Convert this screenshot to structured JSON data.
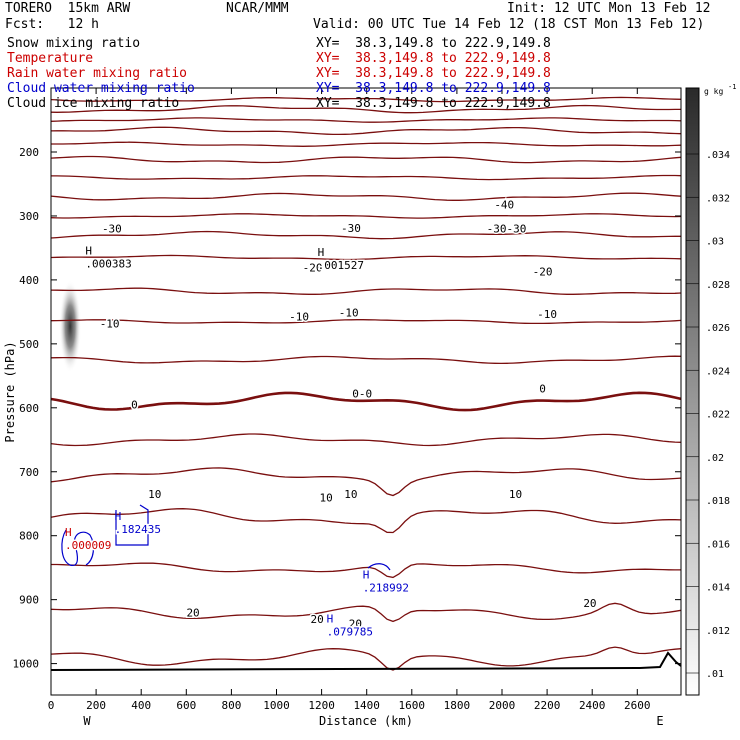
{
  "header": {
    "model": "TORERO  15km ARW",
    "org": "NCAR/MMM",
    "init": "Init: 12 UTC Mon 13 Feb 12",
    "fcst": "Fcst:   12 h",
    "valid": "Valid: 00 UTC Tue 14 Feb 12 (18 CST Mon 13 Feb 12)"
  },
  "fields": [
    {
      "name": "Snow mixing ratio",
      "xy": "XY=  38.3,149.8 to 222.9,149.8",
      "color": "#000000"
    },
    {
      "name": "Temperature",
      "xy": "XY=  38.3,149.8 to 222.9,149.8",
      "color": "#cc0000"
    },
    {
      "name": "Rain water mixing ratio",
      "xy": "XY=  38.3,149.8 to 222.9,149.8",
      "color": "#cc0000"
    },
    {
      "name": "Cloud water mixing ratio",
      "xy": "XY=  38.3,149.8 to 222.9,149.8",
      "color": "#0000cc"
    },
    {
      "name": "Cloud ice mixing ratio",
      "xy": "XY=  38.3,149.8 to 222.9,149.8",
      "color": "#000000"
    }
  ],
  "chart_data": {
    "type": "contour-cross-section",
    "xlabel": "Distance (km)",
    "ylabel": "Pressure (hPa)",
    "xlim": [
      0,
      2800
    ],
    "ylim": [
      1050,
      100
    ],
    "x_ticks": [
      "0",
      "200",
      "400",
      "600",
      "800",
      "1000",
      "1200",
      "1400",
      "1600",
      "1800",
      "2000",
      "2200",
      "2400",
      "2600"
    ],
    "x_tick_values": [
      0,
      200,
      400,
      600,
      800,
      1000,
      1200,
      1400,
      1600,
      1800,
      2000,
      2200,
      2400,
      2600
    ],
    "y_ticks": [
      "200",
      "300",
      "400",
      "500",
      "600",
      "700",
      "800",
      "900",
      "1000"
    ],
    "y_tick_values": [
      200,
      300,
      400,
      500,
      600,
      700,
      800,
      900,
      1000
    ],
    "west_label": "W",
    "east_label": "E",
    "colorbar": {
      "unit": "g kg",
      "unit_sup": "-1",
      "labels": [
        ".01",
        ".012",
        ".014",
        ".016",
        ".018",
        ".02",
        ".022",
        ".024",
        ".026",
        ".028",
        ".03",
        ".032",
        ".034"
      ]
    },
    "temperature_contours": [
      {
        "p": 118,
        "label": ""
      },
      {
        "p": 133,
        "label": ""
      },
      {
        "p": 150,
        "label": ""
      },
      {
        "p": 167,
        "label": ""
      },
      {
        "p": 188,
        "label": ""
      },
      {
        "p": 212,
        "label": ""
      },
      {
        "p": 240,
        "label": ""
      },
      {
        "p": 270,
        "label": ""
      },
      {
        "p": 300,
        "label": ""
      },
      {
        "p": 330,
        "label": ""
      },
      {
        "p": 365,
        "label": ""
      },
      {
        "p": 418,
        "label": ""
      },
      {
        "p": 465,
        "label": ""
      },
      {
        "p": 525,
        "label": ""
      },
      {
        "p": 590,
        "label": "0"
      },
      {
        "p": 650,
        "label": ""
      },
      {
        "p": 705,
        "label": ""
      },
      {
        "p": 770,
        "label": "10"
      },
      {
        "p": 850,
        "label": ""
      },
      {
        "p": 920,
        "label": "20"
      },
      {
        "p": 990,
        "label": ""
      }
    ],
    "contour_labels": [
      {
        "text": "-40",
        "x": 2010,
        "p": 282
      },
      {
        "text": "-30",
        "x": 270,
        "p": 320
      },
      {
        "text": "-30",
        "x": 1330,
        "p": 319
      },
      {
        "text": "-30-30",
        "x": 2020,
        "p": 320
      },
      {
        "text": "-20",
        "x": 1160,
        "p": 381
      },
      {
        "text": "-20",
        "x": 2180,
        "p": 387
      },
      {
        "text": "-10",
        "x": 260,
        "p": 468
      },
      {
        "text": "-10",
        "x": 1100,
        "p": 457
      },
      {
        "text": "-10",
        "x": 1320,
        "p": 451
      },
      {
        "text": "-10",
        "x": 2200,
        "p": 453
      },
      {
        "text": "0",
        "x": 370,
        "p": 595
      },
      {
        "text": "0-0",
        "x": 1380,
        "p": 578
      },
      {
        "text": "0",
        "x": 2180,
        "p": 570
      },
      {
        "text": "10",
        "x": 460,
        "p": 735
      },
      {
        "text": "10",
        "x": 1220,
        "p": 740
      },
      {
        "text": "10",
        "x": 1330,
        "p": 735
      },
      {
        "text": "10",
        "x": 2060,
        "p": 735
      },
      {
        "text": "20",
        "x": 630,
        "p": 920
      },
      {
        "text": "20",
        "x": 1180,
        "p": 930
      },
      {
        "text": "20",
        "x": 1350,
        "p": 937
      },
      {
        "text": "20",
        "x": 2390,
        "p": 905
      }
    ],
    "maxima_markers": [
      {
        "letter": "H",
        "value": ".000383",
        "x": 170,
        "p": 370,
        "color": "#000000"
      },
      {
        "letter": "H",
        "value": ".001527",
        "x": 1200,
        "p": 372,
        "color": "#000000"
      },
      {
        "letter": "H",
        "value": ".182435",
        "x": 300,
        "p": 785,
        "color": "#0000cc"
      },
      {
        "letter": "H",
        "value": ".000009",
        "x": 80,
        "p": 810,
        "color": "#cc0000"
      },
      {
        "letter": "H",
        "value": ".218992",
        "x": 1400,
        "p": 876,
        "color": "#0000cc"
      },
      {
        "letter": "H",
        "value": ".079785",
        "x": 1240,
        "p": 945,
        "color": "#0000cc"
      }
    ],
    "snow_blob": {
      "x": 85,
      "p_top": 400,
      "p_bottom": 545
    }
  }
}
